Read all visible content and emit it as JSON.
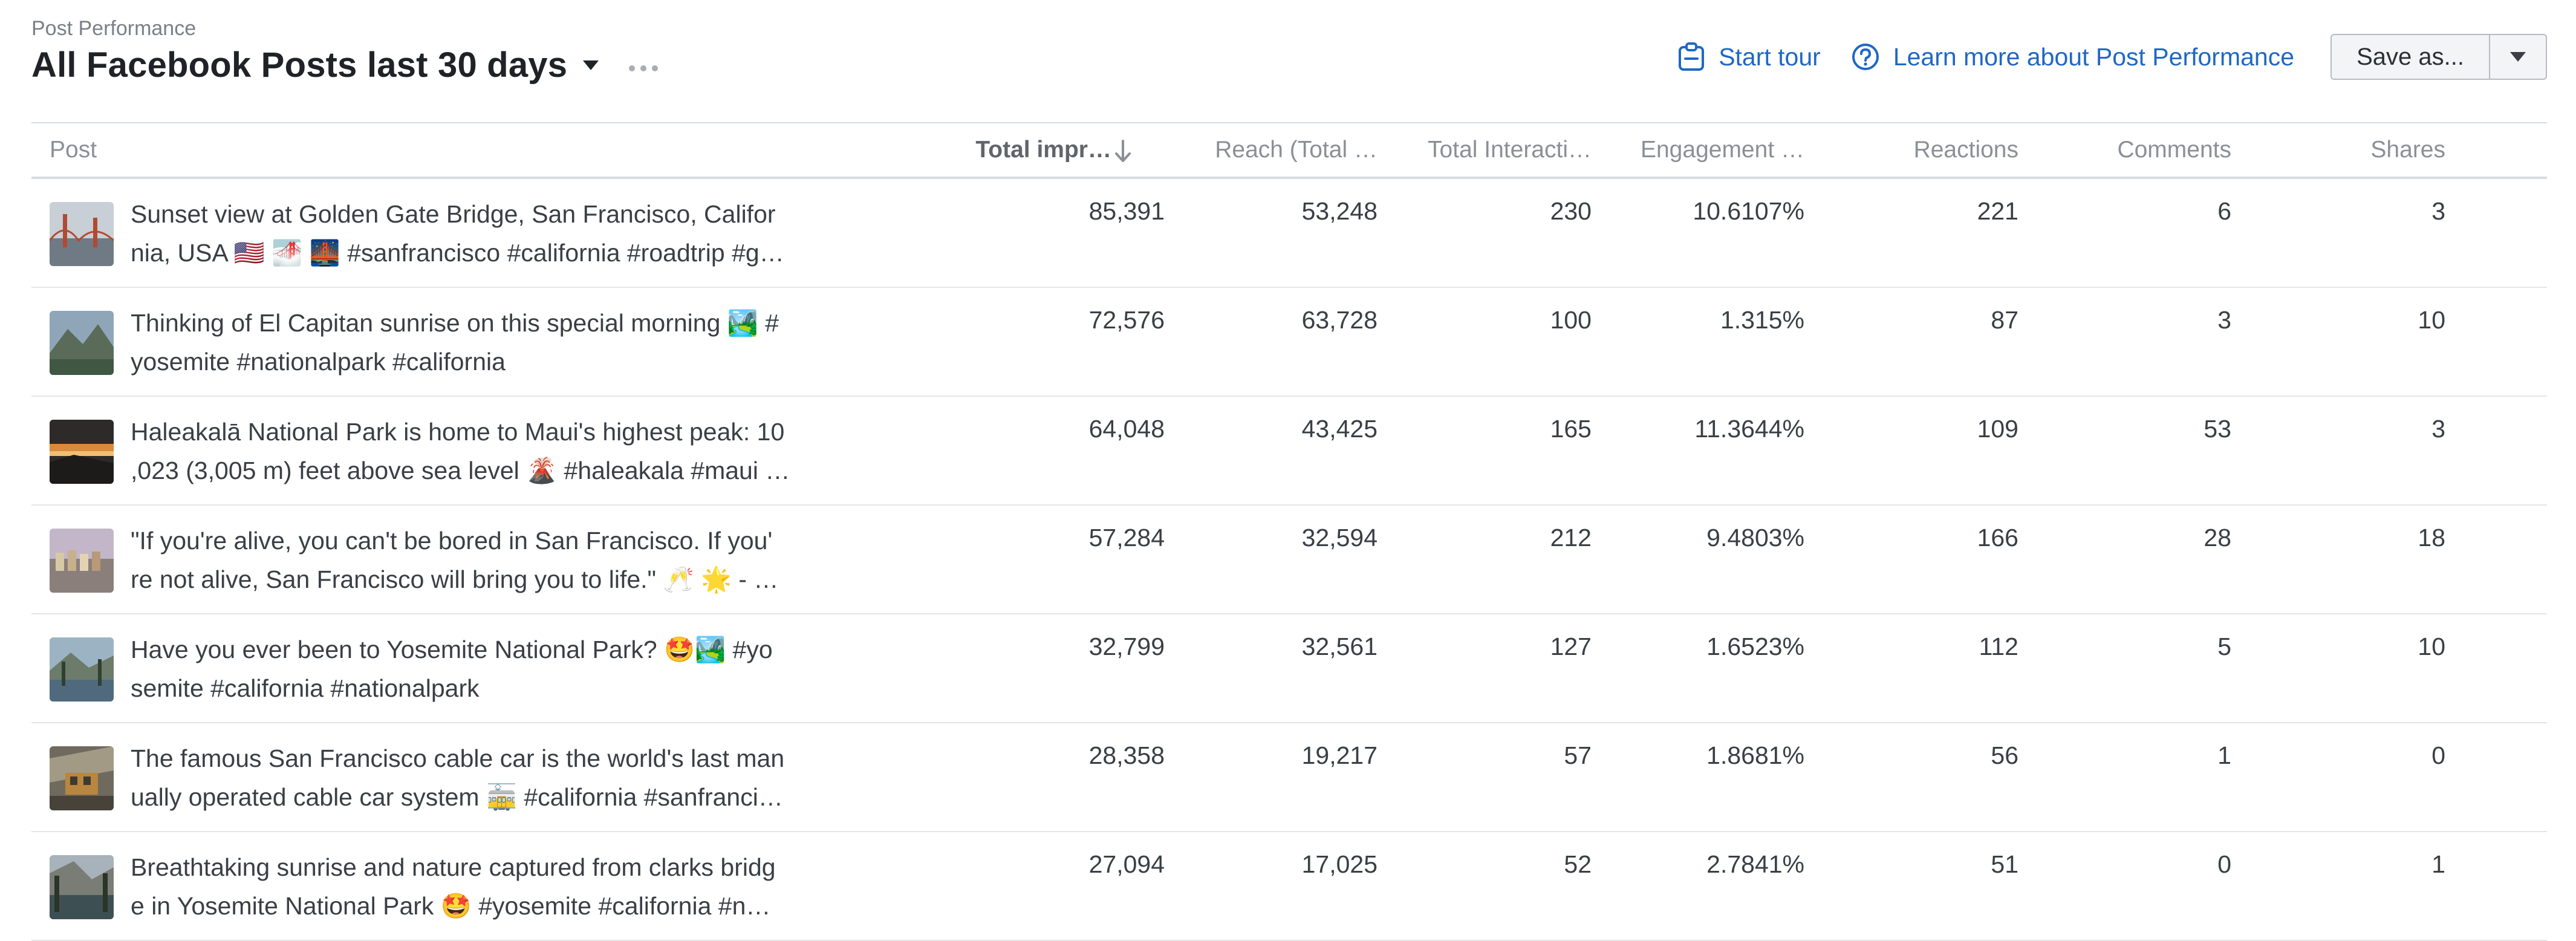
{
  "header": {
    "eyebrow": "Post Performance",
    "title": "All Facebook Posts last 30 days",
    "start_tour": "Start tour",
    "learn_more": "Learn more about Post Performance",
    "save_as": "Save as...",
    "accent_color": "#1f68c4"
  },
  "table": {
    "columns": [
      "Post",
      "Total impr…",
      "Reach (Total …",
      "Total Interacti…",
      "Engagement …",
      "Reactions",
      "Comments",
      "Shares"
    ],
    "rows": [
      {
        "line1": "Sunset view at Golden Gate Bridge, San Francisco, Califor",
        "line2": "nia, USA 🇺🇸 🌁 🌉 #sanfrancisco #california #roadtrip #g…",
        "impressions": "85,391",
        "reach": "53,248",
        "interactions": "230",
        "engagement": "10.6107%",
        "reactions": "221",
        "comments": "6",
        "shares": "3"
      },
      {
        "line1": "Thinking of El Capitan sunrise on this special morning 🏞️ #",
        "line2": "yosemite #nationalpark #california",
        "impressions": "72,576",
        "reach": "63,728",
        "interactions": "100",
        "engagement": "1.315%",
        "reactions": "87",
        "comments": "3",
        "shares": "10"
      },
      {
        "line1": "Haleakalā National Park is home to Maui's highest peak: 10",
        "line2": ",023 (3,005 m) feet above sea level 🌋 #haleakala #maui …",
        "impressions": "64,048",
        "reach": "43,425",
        "interactions": "165",
        "engagement": "11.3644%",
        "reactions": "109",
        "comments": "53",
        "shares": "3"
      },
      {
        "line1": "\"If you're alive, you can't be bored in San Francisco. If you'",
        "line2": "re not alive, San Francisco will bring you to life.\" 🥂 🌟 - …",
        "impressions": "57,284",
        "reach": "32,594",
        "interactions": "212",
        "engagement": "9.4803%",
        "reactions": "166",
        "comments": "28",
        "shares": "18"
      },
      {
        "line1": "Have you ever been to Yosemite National Park? 🤩🏞️ #yo",
        "line2": "semite #california #nationalpark",
        "impressions": "32,799",
        "reach": "32,561",
        "interactions": "127",
        "engagement": "1.6523%",
        "reactions": "112",
        "comments": "5",
        "shares": "10"
      },
      {
        "line1": "The famous San Francisco cable car is the world's last man",
        "line2": "ually operated cable car system 🚋 #california #sanfranci…",
        "impressions": "28,358",
        "reach": "19,217",
        "interactions": "57",
        "engagement": "1.8681%",
        "reactions": "56",
        "comments": "1",
        "shares": "0"
      },
      {
        "line1": "Breathtaking sunrise and nature captured from clarks bridg",
        "line2": "e in Yosemite National Park 🤩 #yosemite #california #n…",
        "impressions": "27,094",
        "reach": "17,025",
        "interactions": "52",
        "engagement": "2.7841%",
        "reactions": "51",
        "comments": "0",
        "shares": "1"
      }
    ]
  }
}
